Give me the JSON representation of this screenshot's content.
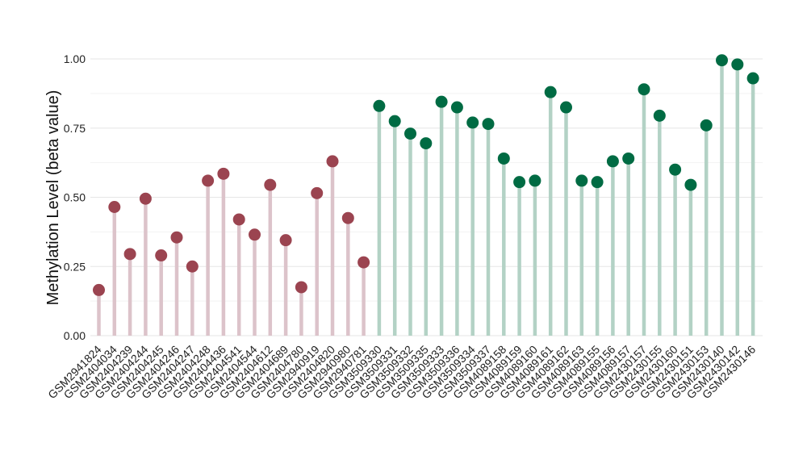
{
  "chart_data": {
    "type": "scatter",
    "subtype": "lollipop",
    "title": "",
    "xlabel": "",
    "ylabel": "Methylation Level (beta value)",
    "ylim": [
      0,
      1.0
    ],
    "yticks": [
      "0.00",
      "0.25",
      "0.50",
      "0.75",
      "1.00"
    ],
    "ytick_values": [
      0,
      0.25,
      0.5,
      0.75,
      1.0
    ],
    "grid": true,
    "legend": "none",
    "categories": [
      "GSM2941824",
      "GSM2404034",
      "GSM2404239",
      "GSM2404244",
      "GSM2404245",
      "GSM2404246",
      "GSM2404247",
      "GSM2404248",
      "GSM2404436",
      "GSM2404541",
      "GSM2404544",
      "GSM2404612",
      "GSM2404689",
      "GSM2404780",
      "GSM2940919",
      "GSM2404820",
      "GSM2940980",
      "GSM2940781",
      "GSM3509330",
      "GSM3509331",
      "GSM3509332",
      "GSM3509335",
      "GSM3509333",
      "GSM3509336",
      "GSM3509334",
      "GSM3509337",
      "GSM4089158",
      "GSM4089159",
      "GSM4089160",
      "GSM4089161",
      "GSM4089162",
      "GSM4089163",
      "GSM4089155",
      "GSM4089156",
      "GSM4089157",
      "GSM2430157",
      "GSM2430155",
      "GSM2430160",
      "GSM2430151",
      "GSM2430153",
      "GSM2430140",
      "GSM2430142",
      "GSM2430146"
    ],
    "values": [
      0.165,
      0.465,
      0.295,
      0.495,
      0.29,
      0.355,
      0.25,
      0.56,
      0.585,
      0.42,
      0.365,
      0.545,
      0.345,
      0.175,
      0.515,
      0.63,
      0.425,
      0.265,
      0.83,
      0.775,
      0.73,
      0.695,
      0.845,
      0.825,
      0.77,
      0.765,
      0.64,
      0.555,
      0.56,
      0.88,
      0.825,
      0.56,
      0.555,
      0.63,
      0.64,
      0.89,
      0.795,
      0.6,
      0.545,
      0.76,
      0.995,
      0.98,
      0.93
    ],
    "group_split_index": 18,
    "colors": {
      "group1_point": "#9b4450",
      "group1_stem": "#dcc3ca",
      "group2_point": "#006b43",
      "group2_stem": "#b3d2c5",
      "grid_major": "#e6e6e6",
      "grid_minor": "#f2f2f2"
    }
  }
}
